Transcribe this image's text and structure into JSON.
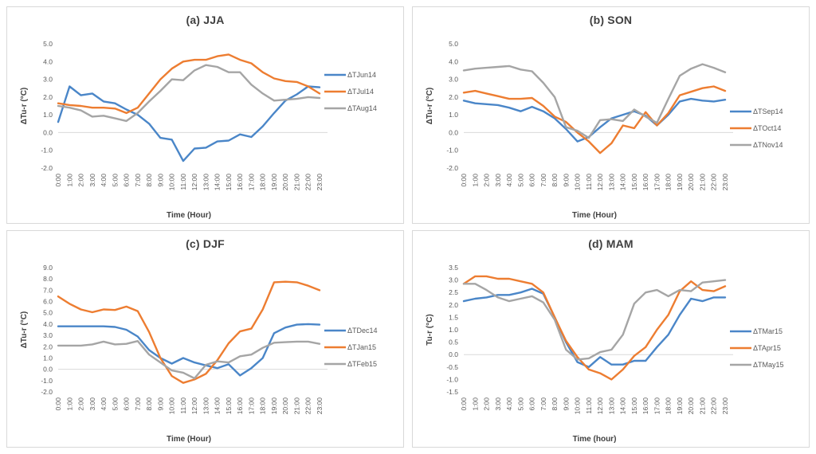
{
  "x_categories": [
    "0:00",
    "1:00",
    "2:00",
    "3:00",
    "4:00",
    "5:00",
    "6:00",
    "7:00",
    "8:00",
    "9:00",
    "10:00",
    "11:00",
    "12:00",
    "13:00",
    "14:00",
    "15:00",
    "16:00",
    "17:00",
    "18:00",
    "19:00",
    "20:00",
    "21:00",
    "22:00",
    "23:00"
  ],
  "palette": {
    "blue": "#4A86C8",
    "orange": "#ED7D31",
    "gray": "#A5A5A5",
    "zero_line": "#d9d9d9"
  },
  "chart_data": [
    {
      "type": "line",
      "title": "(a) JJA",
      "xlabel": "Time (Hour)",
      "ylabel": "ΔTu-r (°C)",
      "ylim": [
        -2.0,
        5.0
      ],
      "ytick_step": 1.0,
      "grid": false,
      "legend_position": "right",
      "series": [
        {
          "name": "ΔTJun14",
          "color": "#4A86C8",
          "values": [
            0.6,
            2.6,
            2.1,
            2.2,
            1.75,
            1.65,
            1.3,
            1.0,
            0.5,
            -0.3,
            -0.4,
            -1.6,
            -0.9,
            -0.85,
            -0.5,
            -0.45,
            -0.1,
            -0.25,
            0.35,
            1.1,
            1.8,
            2.15,
            2.6,
            2.55
          ]
        },
        {
          "name": "ΔTJul14",
          "color": "#ED7D31",
          "values": [
            1.65,
            1.55,
            1.5,
            1.4,
            1.4,
            1.35,
            1.1,
            1.4,
            2.2,
            3.0,
            3.6,
            4.0,
            4.1,
            4.1,
            4.3,
            4.4,
            4.1,
            3.9,
            3.4,
            3.05,
            2.9,
            2.85,
            2.6,
            2.2
          ]
        },
        {
          "name": "ΔTAug14",
          "color": "#A5A5A5",
          "values": [
            1.5,
            1.4,
            1.25,
            0.9,
            0.95,
            0.8,
            0.65,
            1.1,
            1.75,
            2.35,
            3.0,
            2.95,
            3.5,
            3.8,
            3.7,
            3.4,
            3.4,
            2.7,
            2.2,
            1.8,
            1.85,
            1.9,
            2.0,
            1.95
          ]
        }
      ]
    },
    {
      "type": "line",
      "title": "(b) SON",
      "xlabel": "Time (Hour)",
      "ylabel": "ΔTu-r (°C)",
      "ylim": [
        -2.0,
        5.0
      ],
      "ytick_step": 1.0,
      "grid": false,
      "legend_position": "right",
      "series": [
        {
          "name": "ΔTSep14",
          "color": "#4A86C8",
          "values": [
            1.8,
            1.65,
            1.6,
            1.55,
            1.4,
            1.2,
            1.45,
            1.2,
            0.8,
            0.2,
            -0.5,
            -0.25,
            0.3,
            0.8,
            1.0,
            1.2,
            0.95,
            0.4,
            1.0,
            1.75,
            1.9,
            1.8,
            1.75,
            1.85
          ]
        },
        {
          "name": "ΔTOct14",
          "color": "#ED7D31",
          "values": [
            2.25,
            2.35,
            2.2,
            2.05,
            1.9,
            1.9,
            1.95,
            1.5,
            0.9,
            0.6,
            0.0,
            -0.5,
            -1.15,
            -0.6,
            0.4,
            0.25,
            1.15,
            0.4,
            1.1,
            2.1,
            2.3,
            2.5,
            2.6,
            2.35
          ]
        },
        {
          "name": "ΔTNov14",
          "color": "#A5A5A5",
          "values": [
            3.5,
            3.6,
            3.65,
            3.7,
            3.75,
            3.55,
            3.45,
            2.8,
            2.0,
            0.3,
            0.1,
            -0.3,
            0.7,
            0.75,
            0.65,
            1.3,
            0.9,
            0.55,
            1.9,
            3.2,
            3.6,
            3.85,
            3.65,
            3.4
          ]
        }
      ]
    },
    {
      "type": "line",
      "title": "(c) DJF",
      "xlabel": "Time (Hour)",
      "ylabel": "ΔTu-r (°C)",
      "ylim": [
        -2.0,
        9.0
      ],
      "ytick_step": 1.0,
      "grid": false,
      "legend_position": "right",
      "series": [
        {
          "name": "ΔTDec14",
          "color": "#4A86C8",
          "values": [
            3.8,
            3.8,
            3.8,
            3.8,
            3.8,
            3.75,
            3.5,
            2.9,
            1.7,
            1.0,
            0.5,
            1.0,
            0.6,
            0.35,
            0.1,
            0.45,
            -0.55,
            0.1,
            1.0,
            3.2,
            3.7,
            3.95,
            4.0,
            3.95
          ]
        },
        {
          "name": "ΔTJan15",
          "color": "#ED7D31",
          "values": [
            6.45,
            5.8,
            5.3,
            5.05,
            5.3,
            5.25,
            5.55,
            5.15,
            3.3,
            1.0,
            -0.6,
            -1.2,
            -0.9,
            -0.4,
            0.8,
            2.3,
            3.35,
            3.6,
            5.3,
            7.7,
            7.75,
            7.7,
            7.4,
            7.0
          ]
        },
        {
          "name": "ΔTFeb15",
          "color": "#A5A5A5",
          "values": [
            2.1,
            2.1,
            2.1,
            2.2,
            2.45,
            2.2,
            2.25,
            2.5,
            1.3,
            0.6,
            -0.1,
            -0.3,
            -0.8,
            0.4,
            0.7,
            0.6,
            1.15,
            1.3,
            1.9,
            2.35,
            2.4,
            2.45,
            2.45,
            2.25
          ]
        }
      ]
    },
    {
      "type": "line",
      "title": "(d) MAM",
      "xlabel": "Time (hour)",
      "ylabel": "Tu-r (°C)",
      "ylim": [
        -1.5,
        3.5
      ],
      "ytick_step": 0.5,
      "grid": false,
      "legend_position": "right",
      "series": [
        {
          "name": "ΔTMar15",
          "color": "#4A86C8",
          "values": [
            2.15,
            2.25,
            2.3,
            2.4,
            2.4,
            2.5,
            2.65,
            2.45,
            1.5,
            0.5,
            -0.3,
            -0.5,
            -0.1,
            -0.4,
            -0.4,
            -0.25,
            -0.25,
            0.3,
            0.8,
            1.6,
            2.25,
            2.15,
            2.3,
            2.3
          ]
        },
        {
          "name": "ΔTApr15",
          "color": "#ED7D31",
          "values": [
            2.85,
            3.15,
            3.15,
            3.05,
            3.05,
            2.95,
            2.85,
            2.5,
            1.5,
            0.55,
            -0.1,
            -0.6,
            -0.75,
            -1.0,
            -0.6,
            -0.05,
            0.3,
            1.0,
            1.6,
            2.55,
            2.95,
            2.6,
            2.55,
            2.75
          ]
        },
        {
          "name": "ΔTMay15",
          "color": "#A5A5A5",
          "values": [
            2.85,
            2.85,
            2.6,
            2.3,
            2.15,
            2.25,
            2.35,
            2.1,
            1.4,
            0.2,
            -0.2,
            -0.15,
            0.1,
            0.2,
            0.8,
            2.05,
            2.5,
            2.6,
            2.35,
            2.6,
            2.55,
            2.9,
            2.95,
            3.0
          ]
        }
      ]
    }
  ]
}
